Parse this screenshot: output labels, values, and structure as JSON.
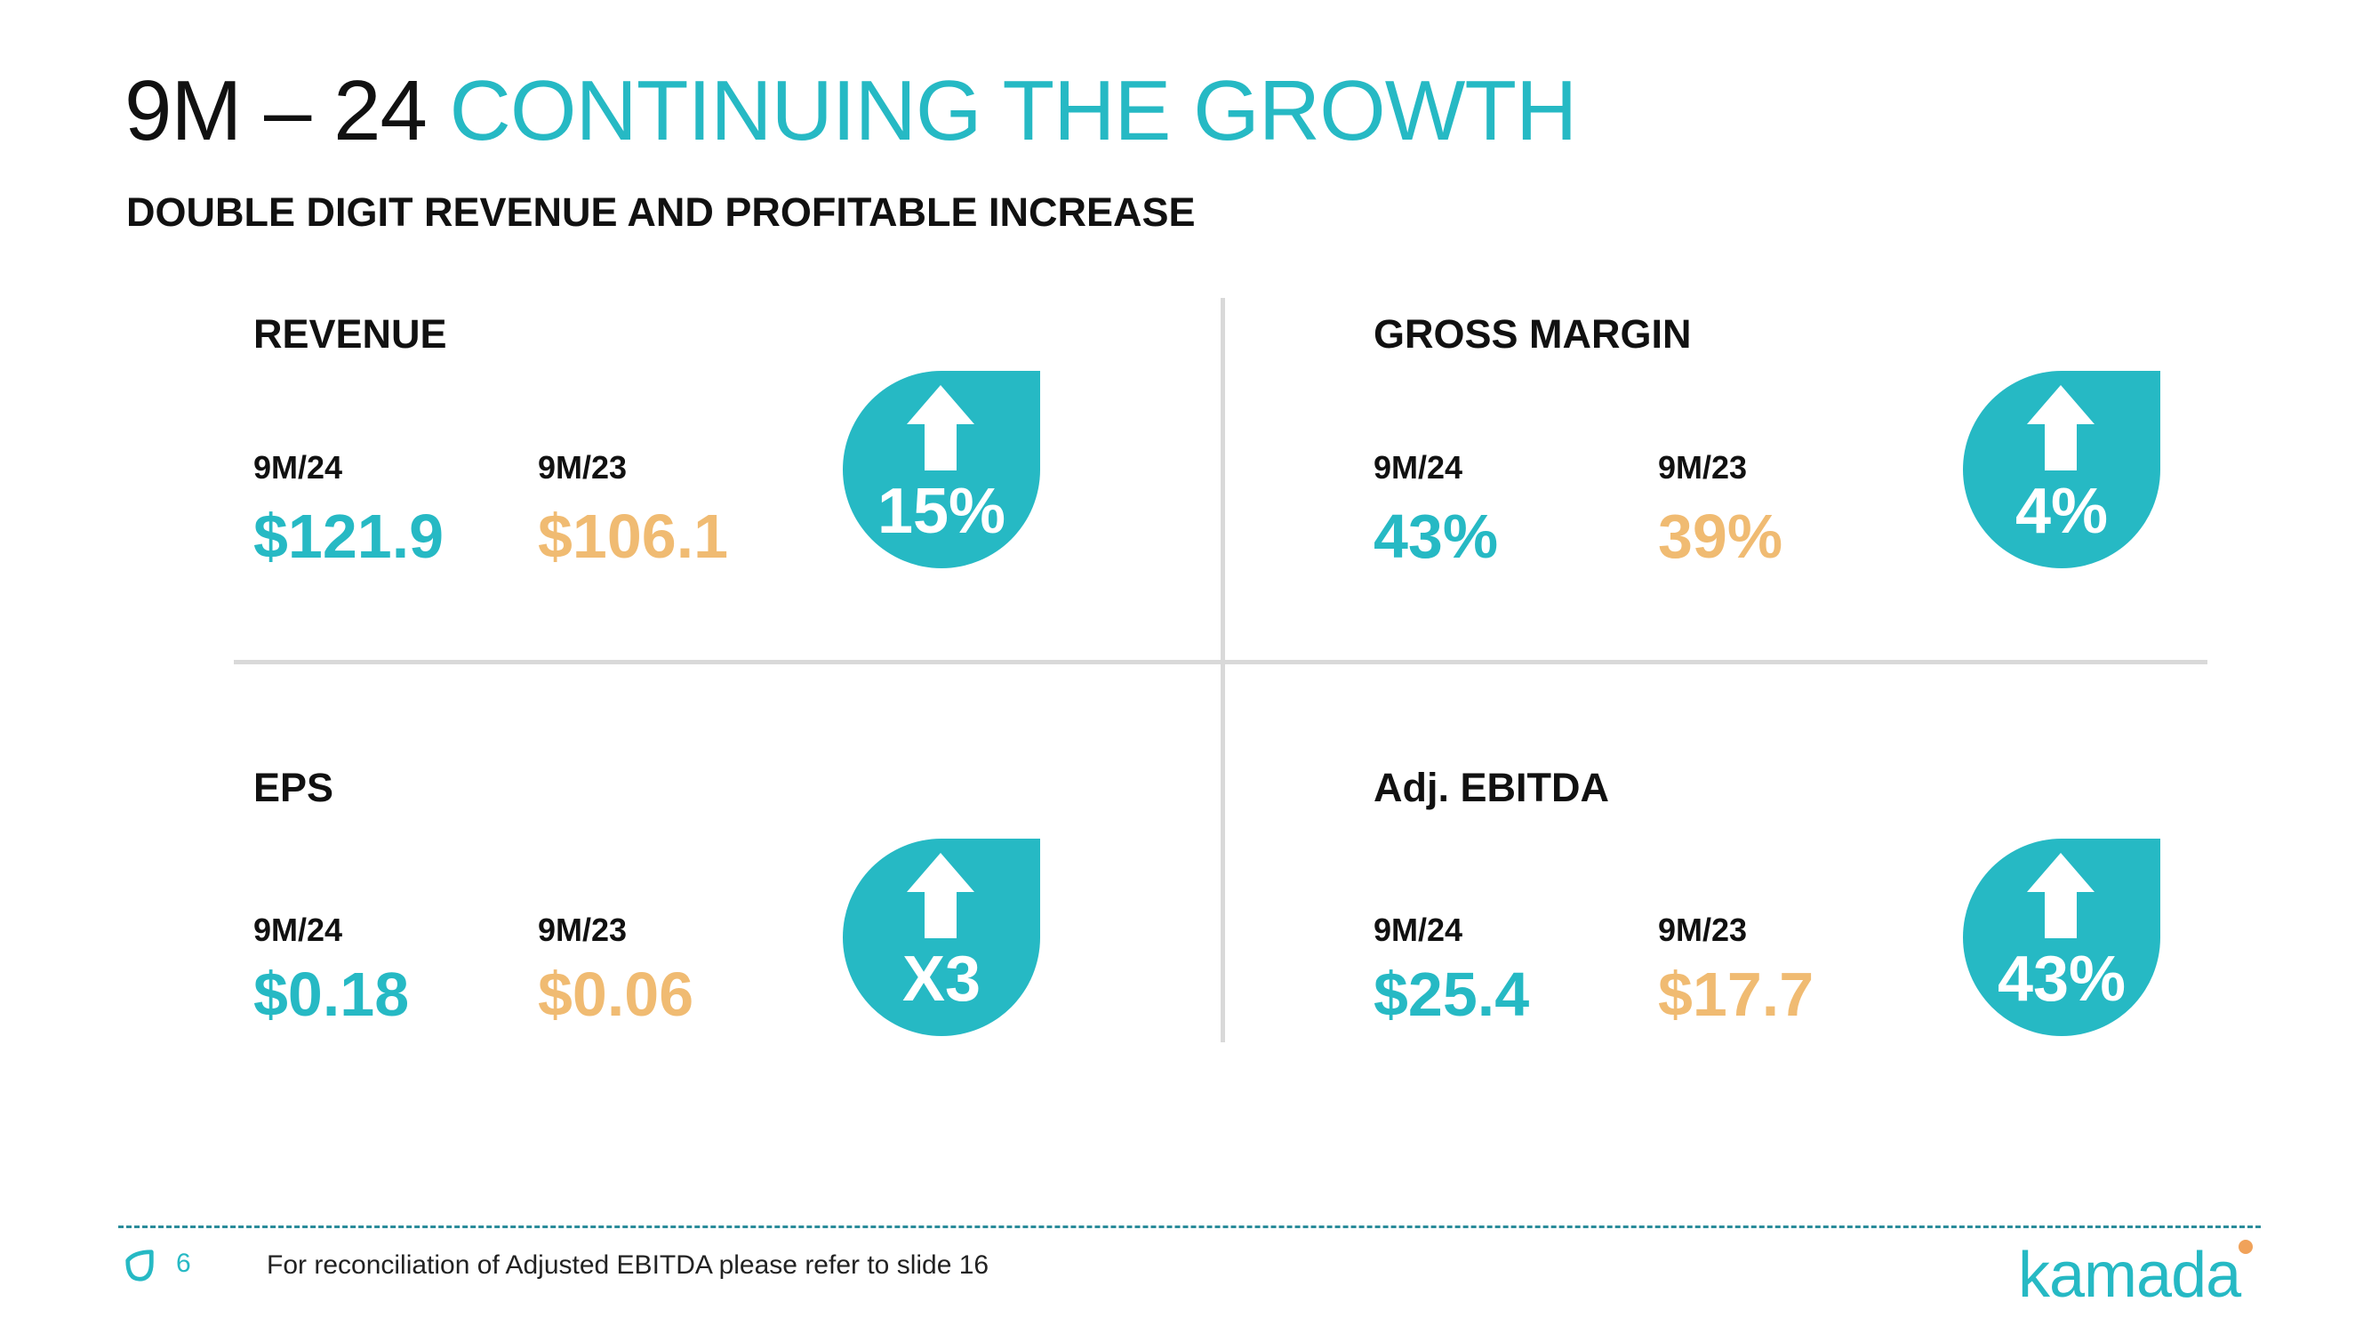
{
  "title": {
    "prefix": "9M – 24",
    "highlight": "CONTINUING THE GROWTH"
  },
  "subtitle": "DOUBLE DIGIT REVENUE AND PROFITABLE INCREASE",
  "metrics": [
    {
      "name": "REVENUE",
      "current_label": "9M/24",
      "current_value": "$121.9",
      "previous_label": "9M/23",
      "previous_value": "$106.1",
      "change": "15%"
    },
    {
      "name": "GROSS MARGIN",
      "current_label": "9M/24",
      "current_value": "43%",
      "previous_label": "9M/23",
      "previous_value": "39%",
      "change": "4%"
    },
    {
      "name": "EPS",
      "current_label": "9M/24",
      "current_value": "$0.18",
      "previous_label": "9M/23",
      "previous_value": "$0.06",
      "change": "X3"
    },
    {
      "name": "Adj. EBITDA",
      "current_label": "9M/24",
      "current_value": "$25.4",
      "previous_label": "9M/23",
      "previous_value": "$17.7",
      "change": "43%"
    }
  ],
  "footer": {
    "page_number": "6",
    "footnote": "For reconciliation of Adjusted EBITDA please refer to slide 16",
    "logo_text": "kamada"
  },
  "colors": {
    "accent": "#26b9c4",
    "previous": "#f0bb72",
    "divider": "#d9d9d9",
    "logo_dot": "#f0a25a"
  },
  "icons": {
    "badge": "up-arrow-icon",
    "footer": "kamada-mark-icon"
  }
}
